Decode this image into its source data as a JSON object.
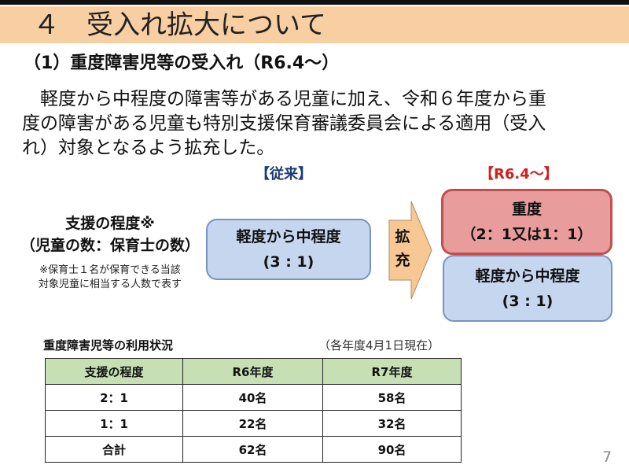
{
  "title": "４　受入れ拡大について",
  "subtitle": "（1）重度障害児等の受入れ（R6.4～）",
  "paragraph": [
    "　軽度から中程度の障害等がある児童に加え、令和６年度から重",
    "度の障害がある児童も特別支援保育審議委員会による適用（受入",
    "れ）対象となるよう拡充した。"
  ],
  "diagram": {
    "before_header": "【従来】",
    "after_header": "【R6.4～】",
    "label_line1": "支援の程度※",
    "label_line2": "（児童の数：保育士の数）",
    "note_line1": "※保育士１名が保育できる当該",
    "note_line2": "対象児童に相当する人数で表す",
    "before_box": {
      "line1": "軽度から中程度",
      "line2": "(3 : 1)"
    },
    "arrow_label": [
      "拡",
      "充"
    ],
    "after_severe": {
      "line1": "重度",
      "line2": "（2：1又は1：1）"
    },
    "after_mild": {
      "line1": "軽度から中程度",
      "line2": "(3 : 1)"
    },
    "colors": {
      "blue_box": "#c7d6ef",
      "pink_box": "#e99c9c",
      "arrow": "#f8c894",
      "before_header": "#1f3b73",
      "after_header": "#d0201e"
    }
  },
  "table": {
    "title": "重度障害児等の利用状況",
    "note": "（各年度4月1日現在）",
    "headers": [
      "支援の程度",
      "R6年度",
      "R7年度"
    ],
    "rows": [
      [
        "2：1",
        "40名",
        "58名"
      ],
      [
        "1：1",
        "22名",
        "32名"
      ],
      [
        "合計",
        "62名",
        "90名"
      ]
    ]
  },
  "page_number": "7"
}
